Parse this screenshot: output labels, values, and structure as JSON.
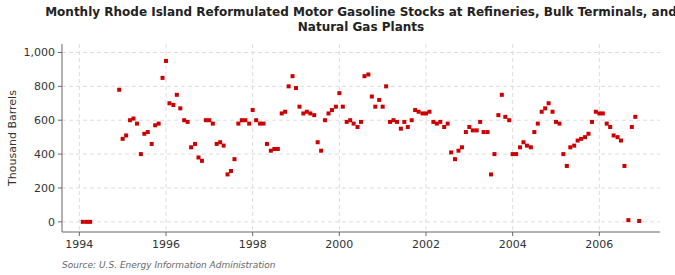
{
  "chart_data": {
    "type": "scatter",
    "title": "Monthly Rhode Island Reformulated Motor Gasoline Stocks at Refineries, Bulk Terminals, and\nNatural Gas Plants",
    "ylabel": "Thousand Barrels",
    "annotations": [
      "Source: U.S. Energy Information Administration"
    ],
    "color": "#cc0000",
    "marker": "square",
    "grid": true,
    "xlim": [
      1993.6,
      2007.4
    ],
    "ylim": [
      -60,
      1050
    ],
    "xticks": [
      1994,
      1996,
      1998,
      2000,
      2002,
      2004,
      2006
    ],
    "yticks": [
      0,
      200,
      400,
      600,
      800,
      {
        "value": 1000,
        "label": "1,000"
      }
    ],
    "x": [
      1994.08,
      1994.17,
      1994.25,
      1994.92,
      1995.0,
      1995.08,
      1995.17,
      1995.25,
      1995.33,
      1995.42,
      1995.5,
      1995.58,
      1995.67,
      1995.75,
      1995.83,
      1995.92,
      1996.0,
      1996.08,
      1996.17,
      1996.25,
      1996.33,
      1996.42,
      1996.5,
      1996.58,
      1996.67,
      1996.75,
      1996.83,
      1996.92,
      1997.0,
      1997.08,
      1997.17,
      1997.25,
      1997.33,
      1997.42,
      1997.5,
      1997.58,
      1997.67,
      1997.75,
      1997.83,
      1997.92,
      1998.0,
      1998.08,
      1998.17,
      1998.25,
      1998.33,
      1998.42,
      1998.5,
      1998.58,
      1998.67,
      1998.75,
      1998.83,
      1998.92,
      1999.0,
      1999.08,
      1999.17,
      1999.25,
      1999.33,
      1999.42,
      1999.5,
      1999.58,
      1999.67,
      1999.75,
      1999.83,
      1999.92,
      2000.0,
      2000.08,
      2000.17,
      2000.25,
      2000.33,
      2000.42,
      2000.5,
      2000.58,
      2000.67,
      2000.75,
      2000.83,
      2000.92,
      2001.0,
      2001.08,
      2001.17,
      2001.25,
      2001.33,
      2001.42,
      2001.5,
      2001.58,
      2001.67,
      2001.75,
      2001.83,
      2001.92,
      2002.0,
      2002.08,
      2002.17,
      2002.25,
      2002.33,
      2002.42,
      2002.5,
      2002.58,
      2002.67,
      2002.75,
      2002.83,
      2002.92,
      2003.0,
      2003.08,
      2003.17,
      2003.25,
      2003.33,
      2003.42,
      2003.5,
      2003.58,
      2003.67,
      2003.75,
      2003.83,
      2003.92,
      2004.0,
      2004.08,
      2004.17,
      2004.25,
      2004.33,
      2004.42,
      2004.5,
      2004.58,
      2004.67,
      2004.75,
      2004.83,
      2004.92,
      2005.0,
      2005.08,
      2005.17,
      2005.25,
      2005.33,
      2005.42,
      2005.5,
      2005.58,
      2005.67,
      2005.75,
      2005.83,
      2005.92,
      2006.0,
      2006.08,
      2006.17,
      2006.25,
      2006.33,
      2006.42,
      2006.5,
      2006.58,
      2006.67,
      2006.75,
      2006.83,
      2006.92
    ],
    "values": [
      0,
      0,
      0,
      780,
      490,
      510,
      600,
      610,
      580,
      400,
      520,
      530,
      460,
      570,
      580,
      850,
      950,
      700,
      690,
      750,
      670,
      600,
      590,
      440,
      460,
      380,
      360,
      600,
      600,
      580,
      460,
      470,
      450,
      280,
      300,
      370,
      580,
      600,
      600,
      580,
      660,
      600,
      580,
      580,
      460,
      420,
      430,
      430,
      640,
      650,
      800,
      860,
      790,
      680,
      640,
      650,
      640,
      630,
      470,
      420,
      600,
      640,
      660,
      680,
      760,
      680,
      590,
      600,
      580,
      560,
      590,
      860,
      870,
      740,
      680,
      720,
      680,
      800,
      590,
      600,
      590,
      550,
      590,
      560,
      600,
      660,
      650,
      640,
      640,
      650,
      590,
      580,
      590,
      560,
      580,
      410,
      370,
      420,
      440,
      530,
      560,
      540,
      540,
      590,
      530,
      530,
      280,
      400,
      630,
      750,
      620,
      600,
      400,
      400,
      440,
      470,
      450,
      440,
      530,
      580,
      650,
      670,
      700,
      650,
      590,
      580,
      400,
      330,
      440,
      450,
      480,
      490,
      500,
      520,
      590,
      650,
      640,
      640,
      580,
      560,
      510,
      500,
      480,
      330,
      10,
      560,
      620,
      5
    ]
  }
}
